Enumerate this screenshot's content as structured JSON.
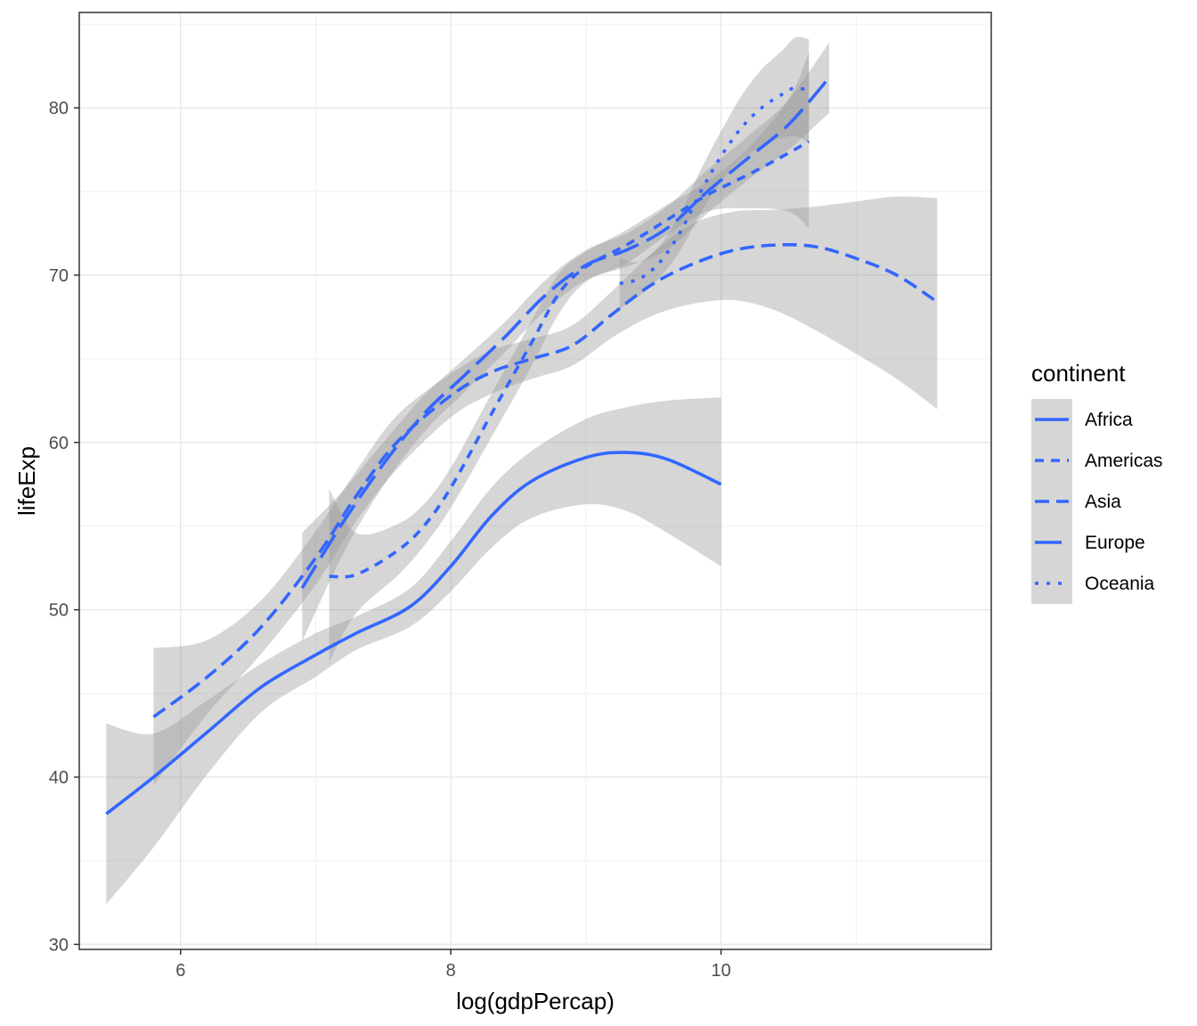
{
  "chart_data": {
    "type": "line",
    "title": "",
    "xlabel": "log(gdpPercap)",
    "ylabel": "lifeExp",
    "xlim": [
      5.25,
      12.0
    ],
    "ylim": [
      29.7,
      85.7
    ],
    "xticks": [
      6,
      8,
      10
    ],
    "yticks": [
      30,
      40,
      50,
      60,
      70,
      80
    ],
    "xtick_labels": [
      "6",
      "8",
      "10"
    ],
    "ytick_labels": [
      "30",
      "40",
      "50",
      "60",
      "70",
      "80"
    ],
    "grid": true,
    "legend": {
      "title": "continent",
      "position": "right"
    },
    "line_color": "#3366FF",
    "band_color": "#999999",
    "series": [
      {
        "name": "Africa",
        "linetype": "solid",
        "x": [
          5.45,
          5.8,
          6.2,
          6.6,
          7.0,
          7.3,
          7.7,
          8.0,
          8.3,
          8.6,
          9.0,
          9.3,
          9.6,
          10.0
        ],
        "y": [
          37.8,
          40.0,
          42.7,
          45.4,
          47.3,
          48.6,
          50.2,
          52.6,
          55.6,
          57.7,
          59.1,
          59.4,
          59.0,
          57.5
        ],
        "lower": [
          32.4,
          35.8,
          40.2,
          43.9,
          46.0,
          47.6,
          49.0,
          51.1,
          53.7,
          55.5,
          56.3,
          55.9,
          54.6,
          52.6
        ],
        "upper": [
          43.2,
          42.6,
          44.6,
          46.8,
          48.6,
          49.6,
          51.3,
          54.1,
          57.3,
          59.5,
          61.4,
          62.1,
          62.5,
          62.7
        ]
      },
      {
        "name": "Americas",
        "linetype": "dotted-short",
        "x": [
          7.1,
          7.3,
          7.6,
          7.8,
          8.0,
          8.3,
          8.6,
          8.8,
          9.0,
          9.3,
          9.6,
          9.9,
          10.2,
          10.5,
          10.65
        ],
        "y": [
          52.0,
          52.1,
          53.5,
          55.0,
          57.3,
          61.7,
          66.0,
          68.9,
          70.5,
          71.8,
          73.3,
          74.8,
          76.0,
          77.3,
          78.0
        ],
        "lower": [
          46.9,
          49.8,
          52.0,
          53.8,
          56.1,
          60.3,
          64.6,
          67.7,
          69.6,
          70.7,
          72.4,
          73.8,
          74.0,
          73.8,
          72.8
        ],
        "upper": [
          57.2,
          54.6,
          55.1,
          56.3,
          58.5,
          62.9,
          67.3,
          70.1,
          71.4,
          72.7,
          74.2,
          75.6,
          77.6,
          80.5,
          83.3
        ]
      },
      {
        "name": "Asia",
        "linetype": "dashed",
        "x": [
          5.8,
          6.2,
          6.6,
          7.0,
          7.3,
          7.6,
          8.0,
          8.3,
          8.6,
          8.9,
          9.2,
          9.5,
          9.8,
          10.1,
          10.4,
          10.7,
          11.0,
          11.3,
          11.6
        ],
        "y": [
          43.6,
          46.0,
          49.0,
          53.1,
          56.8,
          60.0,
          62.8,
          64.2,
          65.0,
          65.8,
          67.7,
          69.5,
          70.7,
          71.5,
          71.8,
          71.7,
          71.0,
          70.0,
          68.4
        ],
        "lower": [
          39.5,
          43.8,
          47.4,
          51.5,
          55.3,
          58.4,
          61.5,
          62.9,
          63.8,
          64.6,
          66.3,
          67.6,
          68.3,
          68.5,
          67.9,
          66.7,
          65.3,
          63.8,
          62.0
        ],
        "upper": [
          47.7,
          48.2,
          50.6,
          54.7,
          58.3,
          61.6,
          64.1,
          65.5,
          66.2,
          67.0,
          69.1,
          71.4,
          73.1,
          73.8,
          73.9,
          74.1,
          74.4,
          74.7,
          74.6
        ]
      },
      {
        "name": "Europe",
        "linetype": "longdash",
        "x": [
          6.9,
          7.2,
          7.5,
          7.8,
          8.1,
          8.4,
          8.7,
          9.0,
          9.3,
          9.6,
          9.9,
          10.2,
          10.5,
          10.8
        ],
        "y": [
          51.3,
          55.2,
          58.7,
          61.7,
          64.0,
          66.3,
          68.8,
          70.6,
          71.5,
          72.8,
          75.0,
          77.0,
          79.0,
          81.8
        ],
        "lower": [
          48.1,
          53.3,
          57.4,
          60.6,
          63.0,
          65.4,
          67.9,
          69.7,
          70.5,
          71.5,
          73.7,
          75.7,
          77.5,
          79.7
        ],
        "upper": [
          54.6,
          57.1,
          60.0,
          62.8,
          65.0,
          67.2,
          69.7,
          71.5,
          72.5,
          74.1,
          76.3,
          78.3,
          80.5,
          83.9
        ]
      },
      {
        "name": "Oceania",
        "linetype": "dotted",
        "x": [
          9.25,
          9.4,
          9.55,
          9.7,
          9.85,
          10.0,
          10.15,
          10.3,
          10.45,
          10.55,
          10.65
        ],
        "y": [
          69.5,
          69.8,
          70.8,
          72.6,
          75.0,
          77.1,
          78.8,
          80.0,
          80.8,
          81.2,
          81.0
        ],
        "lower": [
          68.0,
          68.8,
          69.9,
          71.5,
          73.7,
          75.6,
          76.9,
          77.7,
          78.2,
          78.3,
          77.9
        ],
        "upper": [
          71.0,
          70.8,
          71.8,
          73.7,
          76.3,
          78.6,
          80.7,
          82.3,
          83.4,
          84.2,
          84.1
        ]
      }
    ]
  }
}
